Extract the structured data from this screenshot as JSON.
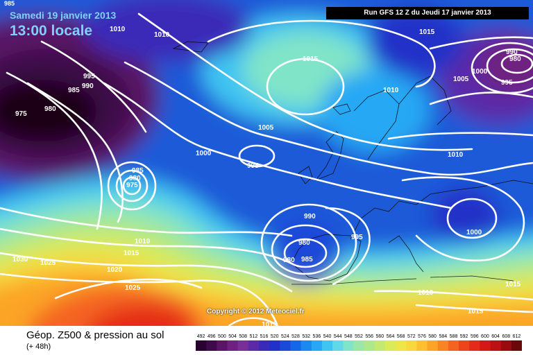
{
  "header": {
    "corner_value": "985",
    "date": "Samedi 19 janvier 2013",
    "local_time": "13:00 locale",
    "run_info": "Run GFS 12 Z du Jeudi 17 janvier 2013"
  },
  "copyright": "Copyright © 2012 Meteociel.fr",
  "legend": {
    "title": "Géop. Z500 & pression au sol",
    "subtitle": "(+ 48h)",
    "scale": [
      "492",
      "496",
      "500",
      "504",
      "508",
      "512",
      "516",
      "520",
      "524",
      "528",
      "532",
      "536",
      "540",
      "544",
      "548",
      "552",
      "556",
      "560",
      "564",
      "568",
      "572",
      "576",
      "580",
      "584",
      "588",
      "592",
      "596",
      "600",
      "604",
      "608",
      "612"
    ],
    "colors": [
      "#2a0230",
      "#3d0a4a",
      "#5a1468",
      "#702080",
      "#7a2e98",
      "#5a2aa8",
      "#3a2ab8",
      "#2030c8",
      "#1a4ad8",
      "#1468e8",
      "#1a8af0",
      "#28a8f4",
      "#40c4f2",
      "#60d8e8",
      "#80e4c8",
      "#9ae8a8",
      "#aee88a",
      "#c4e870",
      "#daea58",
      "#eee648",
      "#f8d83c",
      "#fcc030",
      "#fca428",
      "#f88424",
      "#f46420",
      "#ee441c",
      "#e42a18",
      "#d41816",
      "#bc1014",
      "#980c10",
      "#6a080c"
    ]
  },
  "isobars": [
    {
      "label": "1010",
      "pos": "top-left-center"
    },
    {
      "label": "1010",
      "pos": "top-center"
    },
    {
      "label": "995",
      "pos": "left"
    },
    {
      "label": "990",
      "pos": "left"
    },
    {
      "label": "985",
      "pos": "left"
    },
    {
      "label": "975",
      "pos": "far-left"
    },
    {
      "label": "980",
      "pos": "left"
    },
    {
      "label": "1015",
      "pos": "atlantic-high"
    },
    {
      "label": "1015",
      "pos": "top-right"
    },
    {
      "label": "1010",
      "pos": "north-sea"
    },
    {
      "label": "1005",
      "pos": "north-atlantic"
    },
    {
      "label": "1000",
      "pos": "atlantic"
    },
    {
      "label": "995",
      "pos": "atlantic-small-low"
    },
    {
      "label": "985",
      "pos": "atlantic-low"
    },
    {
      "label": "980",
      "pos": "atlantic-low"
    },
    {
      "label": "975",
      "pos": "atlantic-low"
    },
    {
      "label": "1010",
      "pos": "mid-atlantic"
    },
    {
      "label": "1015",
      "pos": "mid-atlantic"
    },
    {
      "label": "1020",
      "pos": "south-atlantic"
    },
    {
      "label": "1025",
      "pos": "south-atlantic"
    },
    {
      "label": "1030",
      "pos": "south-west"
    },
    {
      "label": "1025",
      "pos": "south-atlantic-high"
    },
    {
      "label": "990",
      "pos": "iberia"
    },
    {
      "label": "980",
      "pos": "iberia"
    },
    {
      "label": "980",
      "pos": "iberia"
    },
    {
      "label": "985",
      "pos": "iberia"
    },
    {
      "label": "995",
      "pos": "iberia-east"
    },
    {
      "label": "1010",
      "pos": "scandinavia"
    },
    {
      "label": "1005",
      "pos": "russia"
    },
    {
      "label": "1000",
      "pos": "russia"
    },
    {
      "label": "995",
      "pos": "russia"
    },
    {
      "label": "990",
      "pos": "russia"
    },
    {
      "label": "980",
      "pos": "russia"
    },
    {
      "label": "1000",
      "pos": "eastern-europe"
    },
    {
      "label": "1010",
      "pos": "mediterranean"
    },
    {
      "label": "1015",
      "pos": "north-africa"
    },
    {
      "label": "1015",
      "pos": "east-med"
    },
    {
      "label": "1015",
      "pos": "sahara"
    }
  ]
}
